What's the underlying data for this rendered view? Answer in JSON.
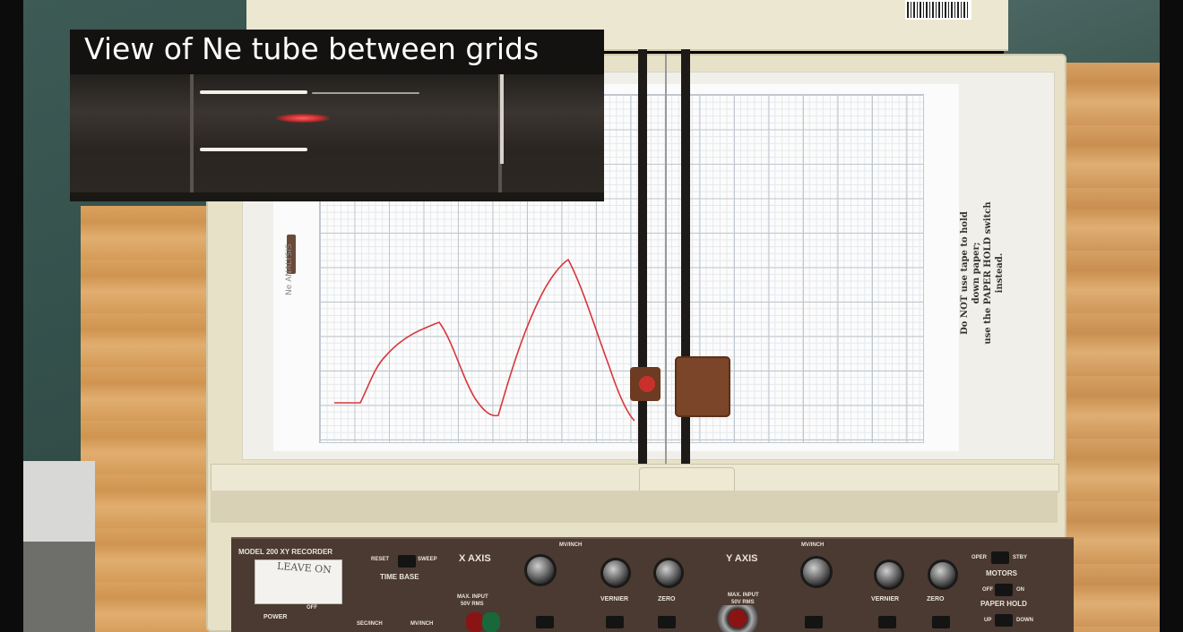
{
  "overlay": {
    "title": "View of Ne tube between grids"
  },
  "paper": {
    "side_note_line1": "Do NOT use tape to hold down paper;",
    "side_note_line2": "use the PAPER HOLD switch instead.",
    "corner_text": "Ne ANALYSIS"
  },
  "panel": {
    "model": "MODEL 200 XY RECORDER",
    "time_base": "TIME BASE",
    "reset": "RESET",
    "sweep": "SWEEP",
    "sec_inch": "SEC/INCH",
    "mv_inch_small": "MV/INCH",
    "power": "POWER",
    "off": "OFF",
    "x_axis": "X AXIS",
    "y_axis": "Y AXIS",
    "mv_inch": "MV/INCH",
    "max_input": "MAX. INPUT",
    "max_input_val": "50V RMS",
    "vernier": "VERNIER",
    "zero": "ZERO",
    "motors": "MOTORS",
    "oper": "OPER",
    "stby": "STBY",
    "paper_hold": "PAPER HOLD",
    "off2": "OFF",
    "on": "ON",
    "up": "UP",
    "down": "DOWN"
  },
  "sticky_label": {
    "text": "LEAVE ON"
  },
  "trace": {
    "color": "#d9363b",
    "description_values": []
  }
}
